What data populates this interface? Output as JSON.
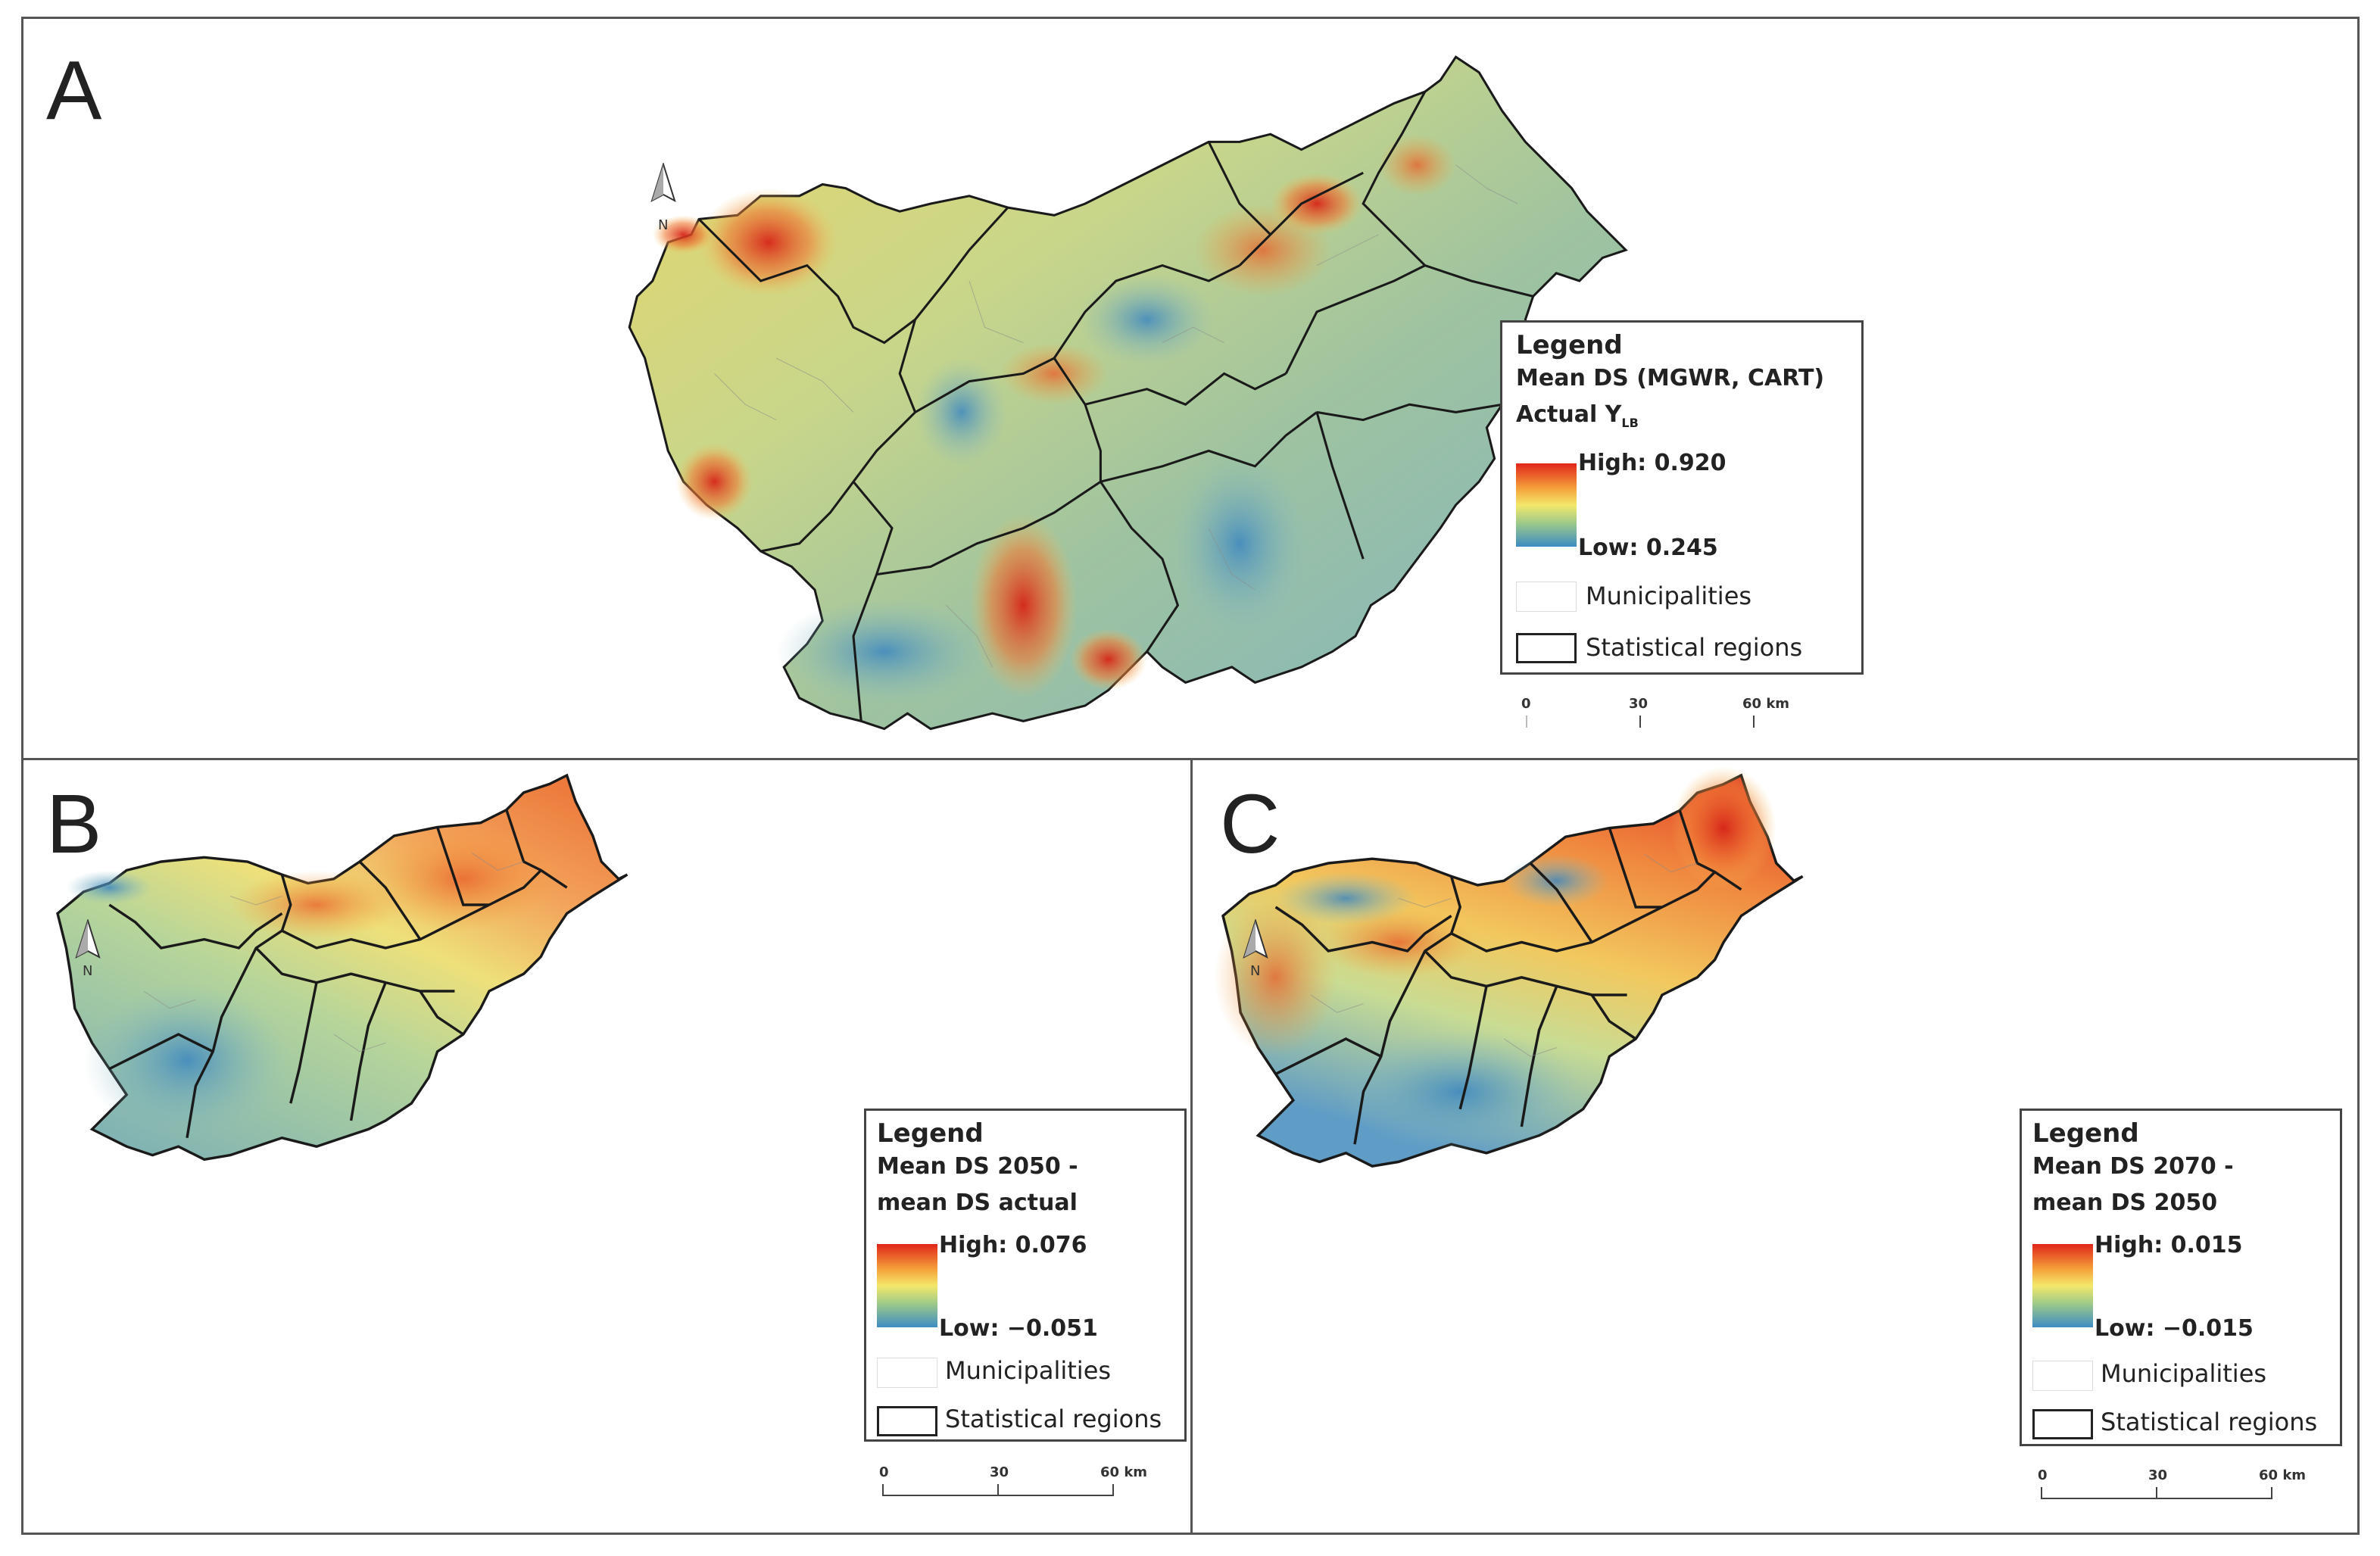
{
  "panels": [
    {
      "letter": "A",
      "legend": {
        "title": "Legend",
        "line1": "Mean DS (MGWR, CART)",
        "line2": "Actual Y",
        "line2_sub": "LB",
        "high": "High: 0.920",
        "low": "Low: 0.245",
        "municipalities": "Municipalities",
        "regions": "Statistical regions"
      },
      "scale": {
        "s0": "0",
        "s1": "30",
        "s2": "60 km"
      },
      "north": "N"
    },
    {
      "letter": "B",
      "legend": {
        "title": "Legend",
        "line1": "Mean DS 2050 -",
        "line2": "mean DS actual",
        "high": "High: 0.076",
        "low": "Low: −0.051",
        "municipalities": "Municipalities",
        "regions": "Statistical regions"
      },
      "scale": {
        "s0": "0",
        "s1": "30",
        "s2": "60 km"
      },
      "north": "N"
    },
    {
      "letter": "C",
      "legend": {
        "title": "Legend",
        "line1": "Mean DS 2070 -",
        "line2": "mean DS 2050",
        "high": "High: 0.015",
        "low": "Low: −0.015",
        "municipalities": "Municipalities",
        "regions": "Statistical regions"
      },
      "scale": {
        "s0": "0",
        "s1": "30",
        "s2": "60 km"
      },
      "north": "N"
    }
  ],
  "colors": {
    "high": "#e0251b",
    "mid_high": "#f5a13a",
    "mid": "#f4e86a",
    "mid_low": "#9cc98a",
    "low": "#3d8cc4",
    "border": "#1a1a1a"
  }
}
